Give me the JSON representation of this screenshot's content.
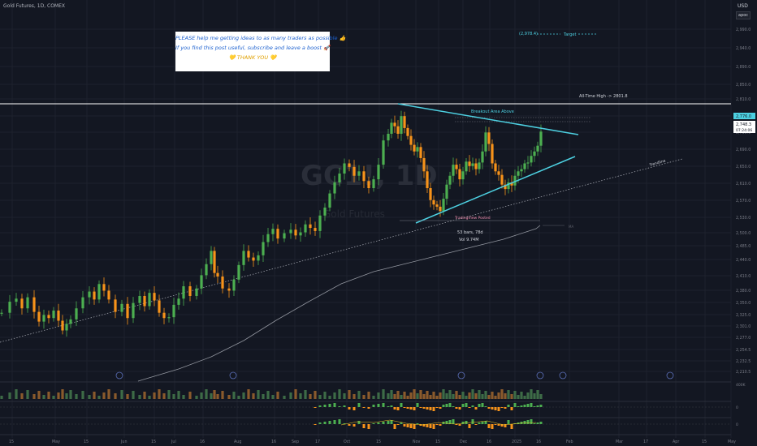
{
  "header": {
    "symbol": "Gold Futures, 1D, COMEX",
    "currency": "USD",
    "mode_label": "apoc"
  },
  "note": {
    "line1": "PLEASE help me getting ideas to as many traders as possible 👍",
    "line2": "If you find this post useful, subscribe and leave a boost 🚀",
    "line3": "💛 THANK YOU 💛"
  },
  "annotations": {
    "target_value": "(2,978.4)",
    "target_label": "Target",
    "ath_label": "All-Time High -> 2801.8",
    "breakout_label": "Breakout Area Above",
    "tv_label": "TradingView Posted",
    "bars_label": "53 bars, 78d",
    "vol_label": "Vol 9.74M",
    "trendline_label": "Trendline",
    "ma_label": "MA",
    "watermark": "GC1!, 1D",
    "watermark_sub": "Gold Futures",
    "volume_axis": "400K",
    "osc1_axis": "0",
    "osc2_axis": "0"
  },
  "price_tags": {
    "breakout_tag": "2,776.0",
    "last_price": "2,748.3",
    "countdown": "07:24:06"
  },
  "colors": {
    "background": "#131722",
    "up": "#4caf50",
    "down": "#f7931a",
    "pattern": "#4dd0e1",
    "grid": "#1e222d",
    "axis_text": "#787b86",
    "ath_line": "#ffffff"
  },
  "chart_data": {
    "type": "candlestick",
    "symbol": "Gold Futures",
    "interval": "1D",
    "y_ticks": [
      "2,990.0",
      "2,940.0",
      "2,890.0",
      "2,850.0",
      "2,810.0",
      "2,776.0",
      "2,730.0",
      "2,690.0",
      "2,650.0",
      "2,610.0",
      "2,570.0",
      "2,530.0",
      "2,500.0",
      "2,485.0",
      "2,440.0",
      "2,410.0",
      "2,380.0",
      "2,350.0",
      "2,325.0",
      "2,301.0",
      "2,277.0",
      "2,254.5",
      "2,232.5",
      "2,210.5"
    ],
    "x_labels": [
      "15",
      "May",
      "15",
      "Jun",
      "15",
      "Jul",
      "16",
      "Aug",
      "16",
      "Sep",
      "17",
      "Oct",
      "15",
      "Nov",
      "15",
      "Dec",
      "16",
      "2025",
      "16",
      "Feb",
      "Mar",
      "17",
      "Apr",
      "15",
      "May"
    ],
    "ylim": [
      2190,
      3010
    ],
    "all_time_high": 2801.8,
    "target": 2978.4,
    "last_price": 2748.3,
    "pattern": "symmetrical triangle",
    "pattern_bars": 53,
    "pattern_days": 78,
    "pattern_volume": "9.74M",
    "close_path": [
      [
        0,
        2330
      ],
      [
        10,
        2355
      ],
      [
        18,
        2362
      ],
      [
        25,
        2340
      ],
      [
        32,
        2365
      ],
      [
        40,
        2332
      ],
      [
        46,
        2310
      ],
      [
        52,
        2325
      ],
      [
        58,
        2318
      ],
      [
        64,
        2335
      ],
      [
        70,
        2312
      ],
      [
        75,
        2290
      ],
      [
        80,
        2305
      ],
      [
        85,
        2315
      ],
      [
        92,
        2340
      ],
      [
        100,
        2365
      ],
      [
        108,
        2378
      ],
      [
        114,
        2360
      ],
      [
        120,
        2395
      ],
      [
        126,
        2380
      ],
      [
        132,
        2360
      ],
      [
        140,
        2332
      ],
      [
        148,
        2350
      ],
      [
        155,
        2318
      ],
      [
        162,
        2352
      ],
      [
        170,
        2368
      ],
      [
        176,
        2345
      ],
      [
        182,
        2375
      ],
      [
        188,
        2358
      ],
      [
        194,
        2330
      ],
      [
        200,
        2318
      ],
      [
        206,
        2320
      ],
      [
        212,
        2348
      ],
      [
        218,
        2362
      ],
      [
        224,
        2390
      ],
      [
        232,
        2368
      ],
      [
        240,
        2385
      ],
      [
        246,
        2415
      ],
      [
        252,
        2440
      ],
      [
        258,
        2470
      ],
      [
        262,
        2420
      ],
      [
        266,
        2412
      ],
      [
        272,
        2385
      ],
      [
        280,
        2380
      ],
      [
        286,
        2405
      ],
      [
        292,
        2438
      ],
      [
        298,
        2470
      ],
      [
        304,
        2455
      ],
      [
        310,
        2448
      ],
      [
        316,
        2460
      ],
      [
        322,
        2490
      ],
      [
        328,
        2508
      ],
      [
        334,
        2520
      ],
      [
        340,
        2498
      ],
      [
        348,
        2510
      ],
      [
        356,
        2518
      ],
      [
        362,
        2505
      ],
      [
        368,
        2512
      ],
      [
        374,
        2530
      ],
      [
        380,
        2522
      ],
      [
        386,
        2515
      ],
      [
        392,
        2550
      ],
      [
        398,
        2568
      ],
      [
        404,
        2600
      ],
      [
        410,
        2625
      ],
      [
        416,
        2645
      ],
      [
        422,
        2668
      ],
      [
        428,
        2660
      ],
      [
        434,
        2640
      ],
      [
        440,
        2650
      ],
      [
        446,
        2628
      ],
      [
        452,
        2612
      ],
      [
        458,
        2632
      ],
      [
        464,
        2665
      ],
      [
        470,
        2720
      ],
      [
        476,
        2735
      ],
      [
        480,
        2760
      ],
      [
        484,
        2752
      ],
      [
        488,
        2735
      ],
      [
        492,
        2775
      ],
      [
        496,
        2748
      ],
      [
        500,
        2730
      ],
      [
        504,
        2710
      ],
      [
        508,
        2695
      ],
      [
        512,
        2705
      ],
      [
        516,
        2680
      ],
      [
        520,
        2650
      ],
      [
        524,
        2612
      ],
      [
        528,
        2585
      ],
      [
        532,
        2575
      ],
      [
        536,
        2570
      ],
      [
        540,
        2560
      ],
      [
        544,
        2588
      ],
      [
        548,
        2620
      ],
      [
        552,
        2640
      ],
      [
        556,
        2665
      ],
      [
        560,
        2655
      ],
      [
        564,
        2632
      ],
      [
        568,
        2650
      ],
      [
        572,
        2672
      ],
      [
        576,
        2662
      ],
      [
        580,
        2668
      ],
      [
        584,
        2655
      ],
      [
        588,
        2670
      ],
      [
        592,
        2695
      ],
      [
        596,
        2738
      ],
      [
        600,
        2712
      ],
      [
        604,
        2668
      ],
      [
        608,
        2650
      ],
      [
        612,
        2642
      ],
      [
        616,
        2620
      ],
      [
        620,
        2610
      ],
      [
        624,
        2625
      ],
      [
        628,
        2618
      ],
      [
        632,
        2640
      ],
      [
        636,
        2650
      ],
      [
        640,
        2655
      ],
      [
        644,
        2668
      ],
      [
        648,
        2670
      ],
      [
        652,
        2685
      ],
      [
        656,
        2695
      ],
      [
        660,
        2708
      ],
      [
        664,
        2740
      ]
    ]
  }
}
